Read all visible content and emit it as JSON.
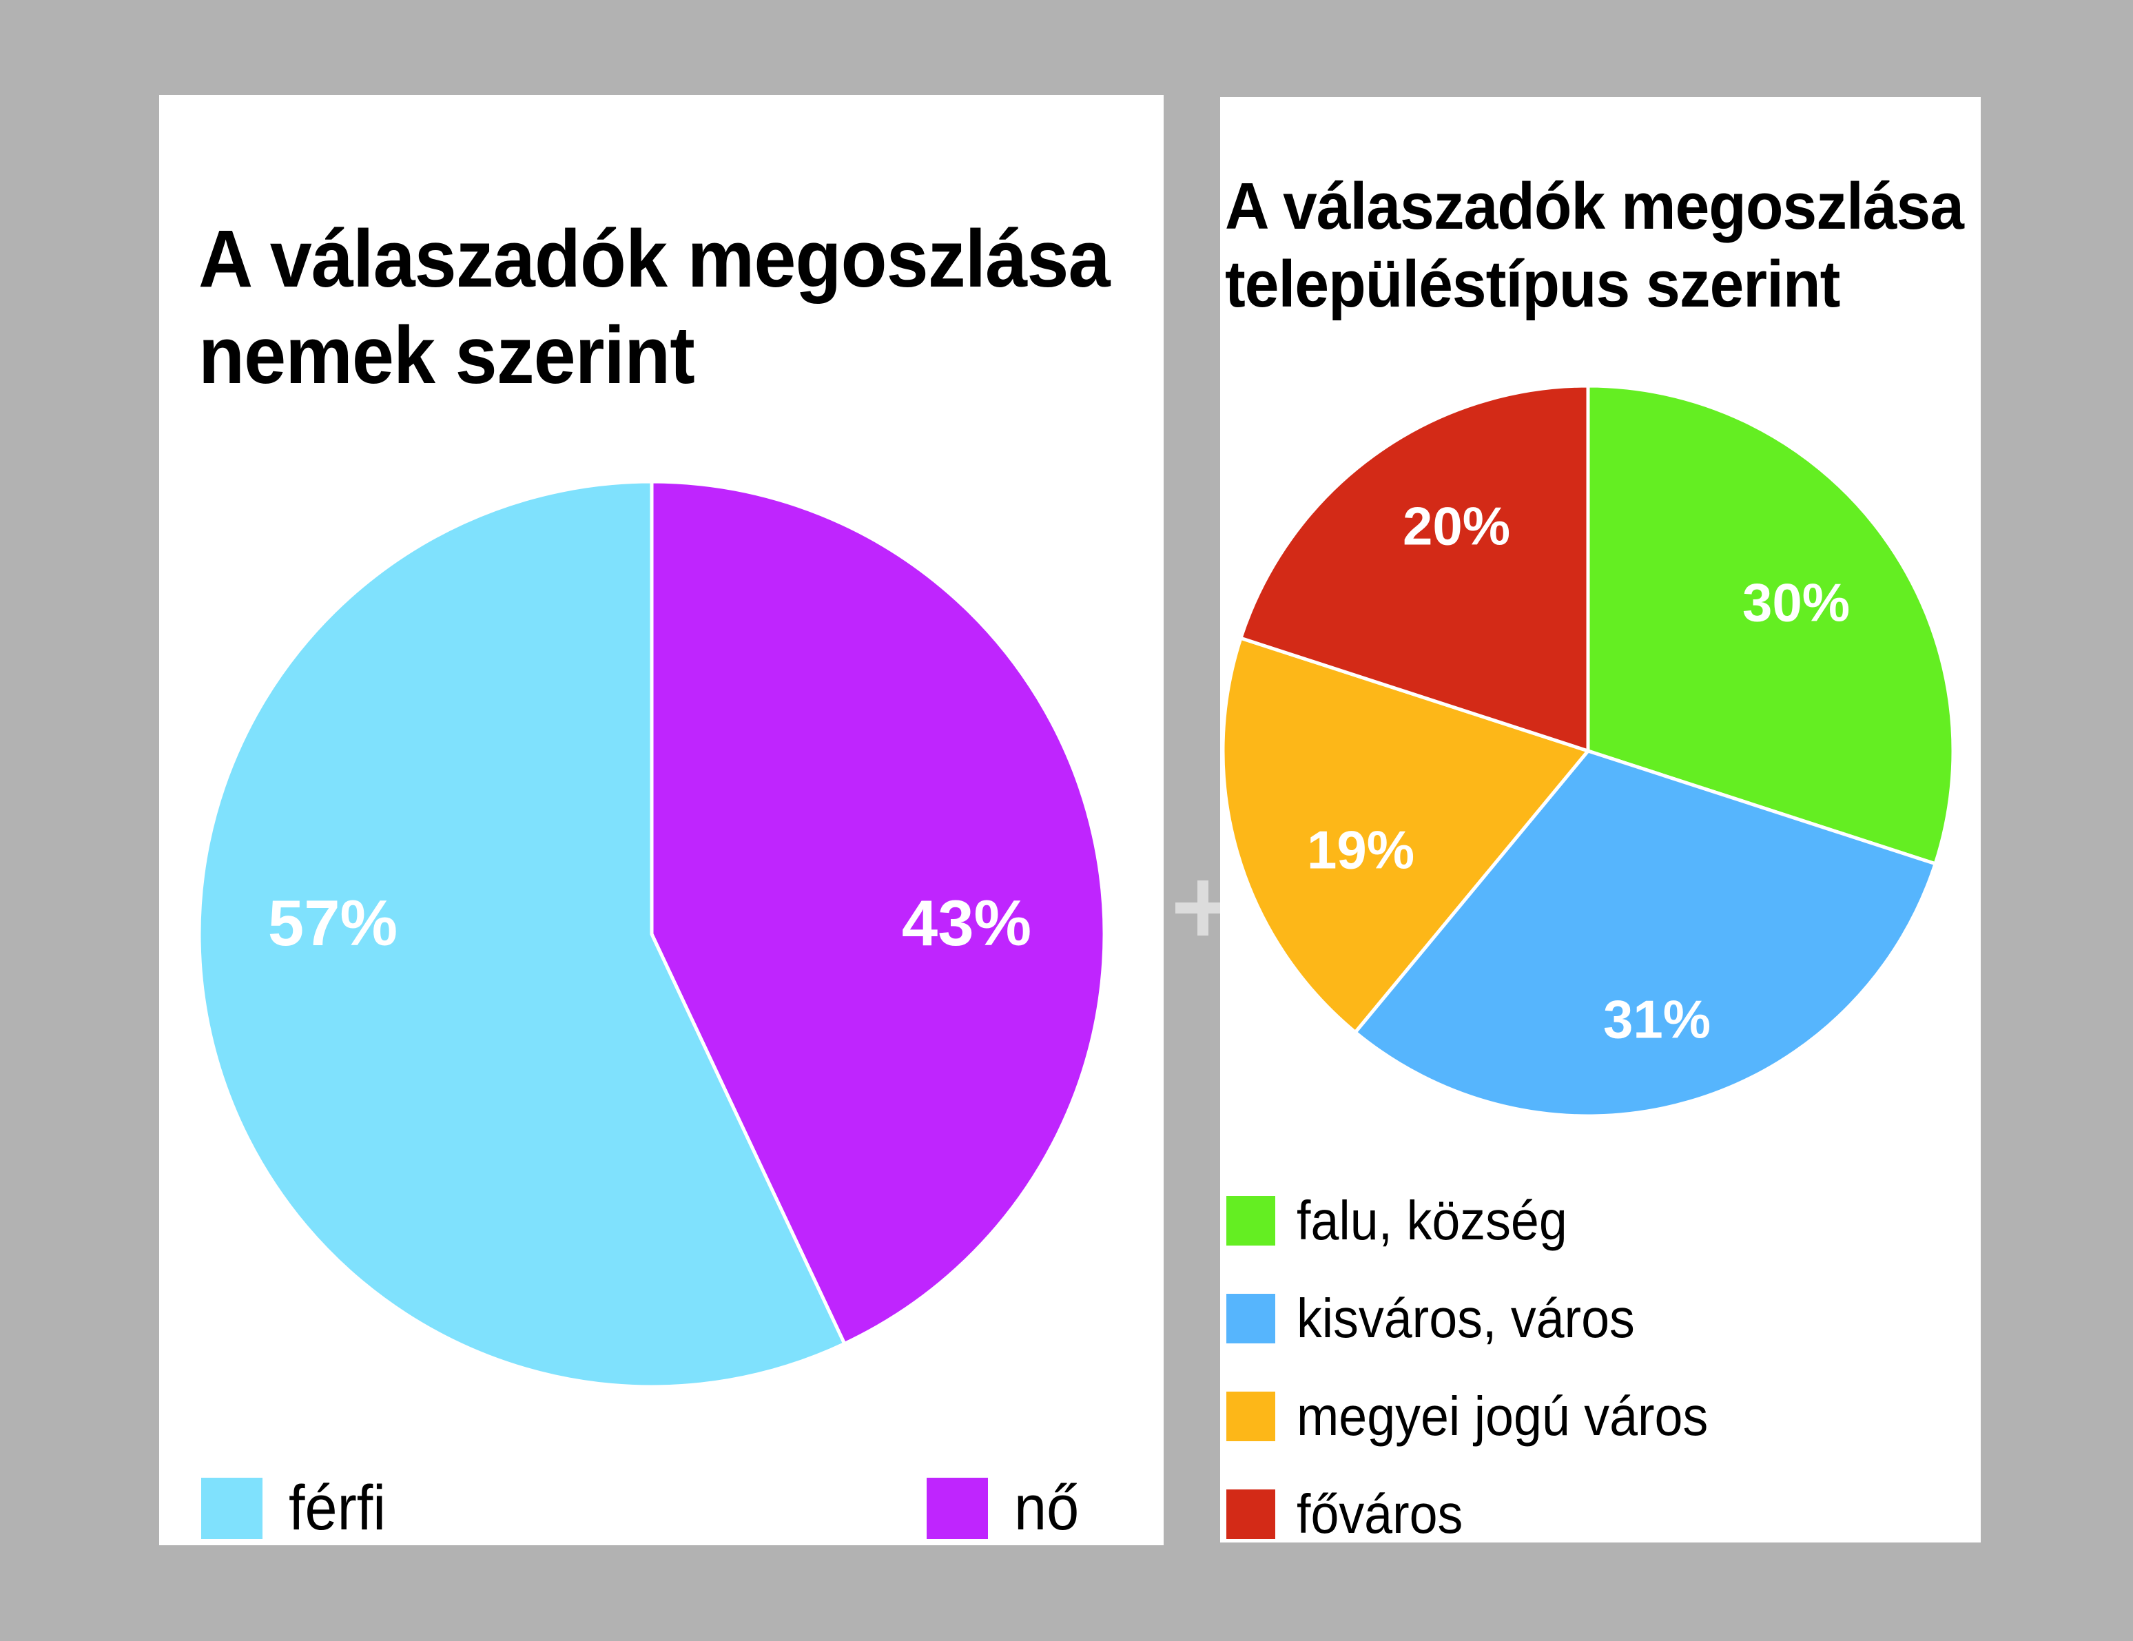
{
  "background_color": "#b2b2b2",
  "separator_symbol": "+",
  "chart_data": [
    {
      "type": "pie",
      "title": "A válaszadók megoszlása nemek szerint",
      "title_lines": [
        "A válaszadók megoszlása",
        "nemek szerint"
      ],
      "categories": [
        "nő",
        "férfi"
      ],
      "values": [
        43,
        57
      ],
      "labels": [
        "43%",
        "57%"
      ],
      "colors": [
        "#bf25fe",
        "#7fe1fd"
      ],
      "start_angle_deg": 0,
      "direction": "clockwise",
      "legend": [
        {
          "label": "férfi",
          "color": "#7fe1fd"
        },
        {
          "label": "nő",
          "color": "#bf25fe"
        }
      ],
      "legend_position": "bottom"
    },
    {
      "type": "pie",
      "title": "A válaszadók megoszlása településtípus szerint",
      "title_lines": [
        "A válaszadók megoszlása",
        "településtípus szerint"
      ],
      "categories": [
        "falu, község",
        "kisváros, város",
        "megyei jogú város",
        "főváros"
      ],
      "values": [
        30,
        31,
        19,
        20
      ],
      "labels": [
        "30%",
        "31%",
        "19%",
        "20%"
      ],
      "colors": [
        "#64ee22",
        "#56b5fd",
        "#fdb718",
        "#d32a17"
      ],
      "start_angle_deg": 0,
      "direction": "clockwise",
      "legend": [
        {
          "label": "falu, község",
          "color": "#64ee22"
        },
        {
          "label": "kisváros, város",
          "color": "#56b5fd"
        },
        {
          "label": "megyei jogú város",
          "color": "#fdb718"
        },
        {
          "label": "főváros",
          "color": "#d32a17"
        }
      ],
      "legend_position": "bottom"
    }
  ]
}
